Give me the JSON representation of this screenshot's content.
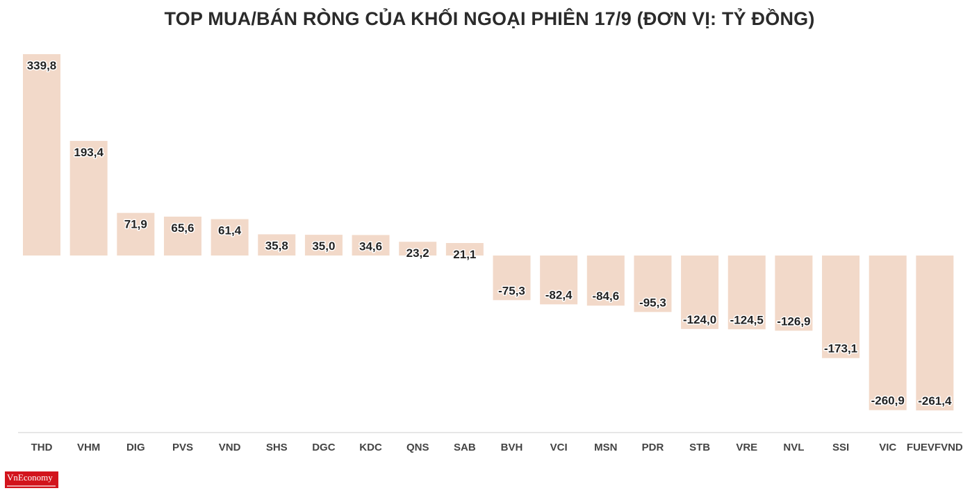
{
  "chart_data": {
    "type": "bar",
    "title": "TOP MUA/BÁN RÒNG CỦA KHỐI NGOẠI PHIÊN 17/9 (ĐƠN VỊ: TỶ ĐỒNG)",
    "categories": [
      "THD",
      "VHM",
      "DIG",
      "PVS",
      "VND",
      "SHS",
      "DGC",
      "KDC",
      "QNS",
      "SAB",
      "BVH",
      "VCI",
      "MSN",
      "PDR",
      "STB",
      "VRE",
      "NVL",
      "SSI",
      "VIC",
      "FUEVFVND"
    ],
    "values": [
      339.8,
      193.4,
      71.9,
      65.6,
      61.4,
      35.8,
      35.0,
      34.6,
      23.2,
      21.1,
      -75.3,
      -82.4,
      -84.6,
      -95.3,
      -124.0,
      -124.5,
      -126.9,
      -173.1,
      -260.9,
      -261.4
    ],
    "value_labels": [
      "339,8",
      "193,4",
      "71,9",
      "65,6",
      "61,4",
      "35,8",
      "35,0",
      "34,6",
      "23,2",
      "21,1",
      "-75,3",
      "-82,4",
      "-84,6",
      "-95,3",
      "-124,0",
      "-124,5",
      "-126,9",
      "-173,1",
      "-260,9",
      "-261,4"
    ],
    "xlabel": "",
    "ylabel": "",
    "ylim": [
      -300,
      350
    ],
    "bar_color": "#f2d9c9",
    "axis_color": "#cccccc",
    "grid": false,
    "legend": "none"
  },
  "brand": {
    "logo_text": "VnEconomy",
    "logo_color": "#d2141c"
  }
}
